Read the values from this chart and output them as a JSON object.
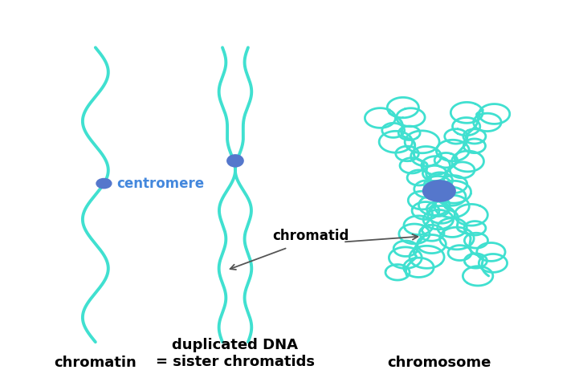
{
  "background_color": "#ffffff",
  "dna_color": "#40E0D0",
  "centromere_color": "#5577CC",
  "text_color": "#000000",
  "label_color": "#4488DD",
  "dna_linewidth": 2.8,
  "chrom_linewidth": 2.0,
  "title_fontsize": 13,
  "label_fontsize": 12,
  "annotation_fontsize": 12,
  "chromatin_label": "chromatin",
  "duplicated_label": "duplicated DNA\n= sister chromatids",
  "chromosome_label": "chromosome",
  "centromere_label": "centromere",
  "chromatid_label": "chromatid",
  "fig_width": 7.31,
  "fig_height": 4.76
}
